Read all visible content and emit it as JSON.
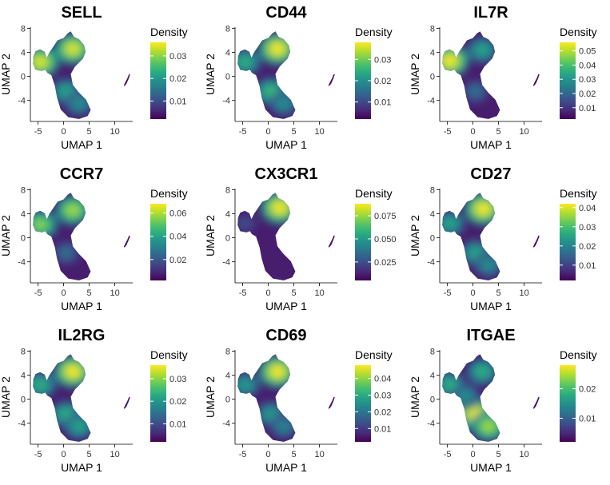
{
  "chart_data": [
    {
      "type": "heatmap",
      "title": "SELL",
      "xlabel": "UMAP 1",
      "ylabel": "UMAP 2",
      "xlim": [
        -6.5,
        13.5
      ],
      "ylim": [
        -7.5,
        8.2
      ],
      "xticks": [
        "-5",
        "0",
        "5",
        "10"
      ],
      "yticks": [
        "8",
        "4",
        "0",
        "-4"
      ],
      "legend_title": "Density",
      "legend_range": [
        0.002,
        0.036
      ],
      "legend_ticks": [
        "0.03",
        "0.02",
        "0.01"
      ],
      "hotspots": [
        {
          "x": -4.5,
          "y": 2.4,
          "w": 0.95
        },
        {
          "x": 1.8,
          "y": 4.6,
          "w": 0.95
        },
        {
          "x": 0.5,
          "y": -2.5,
          "w": 0.55
        },
        {
          "x": 3,
          "y": -4.5,
          "w": 0.45
        }
      ]
    },
    {
      "type": "heatmap",
      "title": "CD44",
      "xlabel": "UMAP 1",
      "ylabel": "UMAP 2",
      "xlim": [
        -6.5,
        13.5
      ],
      "ylim": [
        -7.5,
        8.2
      ],
      "xticks": [
        "-5",
        "0",
        "5",
        "10"
      ],
      "yticks": [
        "8",
        "4",
        "0",
        "-4"
      ],
      "legend_title": "Density",
      "legend_range": [
        0.002,
        0.038
      ],
      "legend_ticks": [
        "0.03",
        "0.02",
        "0.01"
      ],
      "hotspots": [
        {
          "x": 1.8,
          "y": 4.6,
          "w": 1
        },
        {
          "x": -4.5,
          "y": 2.4,
          "w": 0.6
        },
        {
          "x": 0.5,
          "y": -2.5,
          "w": 0.65
        },
        {
          "x": 3,
          "y": -4.5,
          "w": 0.45
        }
      ]
    },
    {
      "type": "heatmap",
      "title": "IL7R",
      "xlabel": "UMAP 1",
      "ylabel": "UMAP 2",
      "xlim": [
        -6.5,
        13.5
      ],
      "ylim": [
        -7.5,
        8.2
      ],
      "xticks": [
        "-5",
        "0",
        "5",
        "10"
      ],
      "yticks": [
        "8",
        "4",
        "0",
        "-4"
      ],
      "legend_title": "Density",
      "legend_range": [
        0.002,
        0.056
      ],
      "legend_ticks": [
        "0.05",
        "0.04",
        "0.03",
        "0.02",
        "0.01"
      ],
      "hotspots": [
        {
          "x": -4.5,
          "y": 2.6,
          "w": 1
        },
        {
          "x": 1.8,
          "y": 4.4,
          "w": 0.55
        },
        {
          "x": 0.5,
          "y": -2.5,
          "w": 0.3
        }
      ]
    },
    {
      "type": "heatmap",
      "title": "CCR7",
      "xlabel": "UMAP 1",
      "ylabel": "UMAP 2",
      "xlim": [
        -6.5,
        13.5
      ],
      "ylim": [
        -7.5,
        8.2
      ],
      "xticks": [
        "-5",
        "0",
        "5",
        "10"
      ],
      "yticks": [
        "8",
        "4",
        "0",
        "-4"
      ],
      "legend_title": "Density",
      "legend_range": [
        0.002,
        0.068
      ],
      "legend_ticks": [
        "0.06",
        "0.04",
        "0.02"
      ],
      "hotspots": [
        {
          "x": -4.5,
          "y": 2.2,
          "w": 0.8
        },
        {
          "x": 1.8,
          "y": 4.6,
          "w": 0.85
        },
        {
          "x": 0.5,
          "y": -2.5,
          "w": 0.3
        }
      ]
    },
    {
      "type": "heatmap",
      "title": "CX3CR1",
      "xlabel": "UMAP 1",
      "ylabel": "UMAP 2",
      "xlim": [
        -6.5,
        13.5
      ],
      "ylim": [
        -7.5,
        8.2
      ],
      "xticks": [
        "-5",
        "0",
        "5",
        "10"
      ],
      "yticks": [
        "8",
        "4",
        "0",
        "-4"
      ],
      "legend_title": "Density",
      "legend_range": [
        0.005,
        0.088
      ],
      "legend_ticks": [
        "0.075",
        "0.050",
        "0.025"
      ],
      "hotspots": [
        {
          "x": 2.2,
          "y": 5,
          "w": 1
        },
        {
          "x": -4.5,
          "y": 2.4,
          "w": 0.15
        }
      ]
    },
    {
      "type": "heatmap",
      "title": "CD27",
      "xlabel": "UMAP 1",
      "ylabel": "UMAP 2",
      "xlim": [
        -6.5,
        13.5
      ],
      "ylim": [
        -7.5,
        8.2
      ],
      "xticks": [
        "-5",
        "0",
        "5",
        "10"
      ],
      "yticks": [
        "8",
        "4",
        "0",
        "-4"
      ],
      "legend_title": "Density",
      "legend_range": [
        0.002,
        0.042
      ],
      "legend_ticks": [
        "0.04",
        "0.03",
        "0.02",
        "0.01"
      ],
      "hotspots": [
        {
          "x": 2,
          "y": 4.8,
          "w": 1
        },
        {
          "x": -4.5,
          "y": 2.4,
          "w": 0.55
        },
        {
          "x": 0.5,
          "y": -2.5,
          "w": 0.55
        },
        {
          "x": 3,
          "y": -4.5,
          "w": 0.45
        }
      ]
    },
    {
      "type": "heatmap",
      "title": "IL2RG",
      "xlabel": "UMAP 1",
      "ylabel": "UMAP 2",
      "xlim": [
        -6.5,
        13.5
      ],
      "ylim": [
        -7.5,
        8.2
      ],
      "xticks": [
        "-5",
        "0",
        "5",
        "10"
      ],
      "yticks": [
        "8",
        "4",
        "0",
        "-4"
      ],
      "legend_title": "Density",
      "legend_range": [
        0.002,
        0.036
      ],
      "legend_ticks": [
        "0.03",
        "0.02",
        "0.01"
      ],
      "hotspots": [
        {
          "x": 1.8,
          "y": 4.6,
          "w": 1
        },
        {
          "x": -4.5,
          "y": 2.4,
          "w": 0.6
        },
        {
          "x": 0.5,
          "y": -2.5,
          "w": 0.6
        },
        {
          "x": 3,
          "y": -4.5,
          "w": 0.55
        }
      ]
    },
    {
      "type": "heatmap",
      "title": "CD69",
      "xlabel": "UMAP 1",
      "ylabel": "UMAP 2",
      "xlim": [
        -6.5,
        13.5
      ],
      "ylim": [
        -7.5,
        8.2
      ],
      "xticks": [
        "-5",
        "0",
        "5",
        "10"
      ],
      "yticks": [
        "8",
        "4",
        "0",
        "-4"
      ],
      "legend_title": "Density",
      "legend_range": [
        0.002,
        0.048
      ],
      "legend_ticks": [
        "0.04",
        "0.03",
        "0.02",
        "0.01"
      ],
      "hotspots": [
        {
          "x": 1.8,
          "y": 4.6,
          "w": 1
        },
        {
          "x": -4.5,
          "y": 2.4,
          "w": 0.5
        },
        {
          "x": 0.5,
          "y": -2.5,
          "w": 0.5
        },
        {
          "x": 3,
          "y": -4.5,
          "w": 0.4
        }
      ]
    },
    {
      "type": "heatmap",
      "title": "ITGAE",
      "xlabel": "UMAP 1",
      "ylabel": "UMAP 2",
      "xlim": [
        -6.5,
        13.5
      ],
      "ylim": [
        -7.5,
        8.2
      ],
      "xticks": [
        "-5",
        "0",
        "5",
        "10"
      ],
      "yticks": [
        "8",
        "4",
        "0",
        "-4"
      ],
      "legend_title": "Density",
      "legend_range": [
        0.002,
        0.028
      ],
      "legend_ticks": [
        "0.02",
        "0.01"
      ],
      "hotspots": [
        {
          "x": 0.5,
          "y": -2.5,
          "w": 1
        },
        {
          "x": 3,
          "y": -4.5,
          "w": 0.85
        },
        {
          "x": 1.8,
          "y": 4.6,
          "w": 0.6
        },
        {
          "x": -4.5,
          "y": 2.4,
          "w": 0.6
        },
        {
          "x": -1.5,
          "y": 0.5,
          "w": 0.45
        }
      ]
    }
  ]
}
